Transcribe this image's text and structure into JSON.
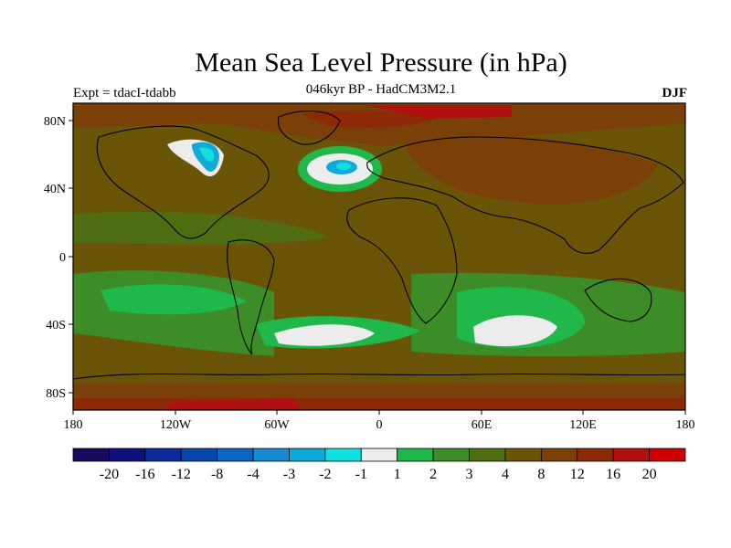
{
  "title": "Mean Sea Level Pressure (in hPa)",
  "subtitle": "046kyr BP - HadCM3M2.1",
  "left_label": "Expt = tdacI-tdabb",
  "right_label": "DJF",
  "axes": {
    "lat_ticks": [
      "80N",
      "40N",
      "0",
      "40S",
      "80S"
    ],
    "lon_ticks": [
      "180",
      "120W",
      "60W",
      "0",
      "60E",
      "120E",
      "180"
    ]
  },
  "colorbar": {
    "colors": [
      "#1a0a5e",
      "#0d0f7a",
      "#0a2a9a",
      "#0a45b0",
      "#0a66c0",
      "#1a8ad0",
      "#10aad8",
      "#10e0e0",
      "#ececec",
      "#20b84a",
      "#3c8c28",
      "#4f6e12",
      "#6a5408",
      "#7a4008",
      "#8c2a08",
      "#b01010",
      "#d00000"
    ],
    "labels": [
      "-20",
      "-16",
      "-12",
      "-8",
      "-4",
      "-3",
      "-2",
      "-1",
      "1",
      "2",
      "3",
      "4",
      "8",
      "12",
      "16",
      "20"
    ]
  },
  "map_colors": {
    "ocean_base": "#6a5408",
    "land_high": "#7a4008",
    "polar_high": "#8c2a08",
    "peak_high": "#b01010",
    "mid_anomaly": "#3c8c28",
    "light_positive": "#20b84a",
    "near_zero": "#ececec",
    "negative": "#10aad8"
  }
}
